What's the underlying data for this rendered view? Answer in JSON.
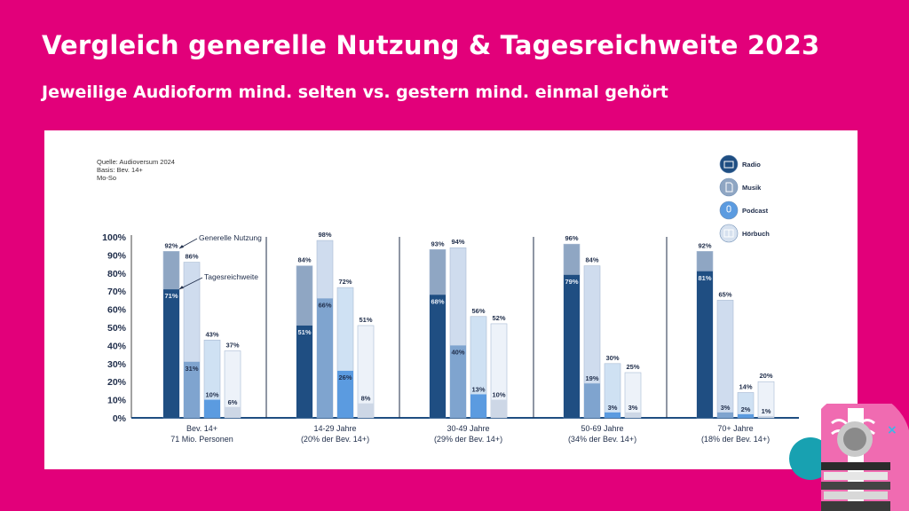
{
  "header": {
    "title": "Vergleich generelle Nutzung & Tagesreichweite 2023",
    "subtitle": "Jeweilige Audioform mind. selten vs. gestern mind. einmal gehört"
  },
  "chart_data": {
    "type": "bar",
    "source_lines": [
      "Quelle: Audioversum 2024",
      "Basis: Bev. 14+",
      "Mo-So"
    ],
    "ylim": [
      0,
      100
    ],
    "yticks": [
      "0%",
      "10%",
      "20%",
      "30%",
      "40%",
      "50%",
      "60%",
      "70%",
      "80%",
      "90%",
      "100%"
    ],
    "categories": [
      {
        "label": "Bev. 14+",
        "sublabel": "71 Mio. Personen"
      },
      {
        "label": "14-29 Jahre",
        "sublabel": "(20% der Bev. 14+)"
      },
      {
        "label": "30-49 Jahre",
        "sublabel": "(29% der Bev. 14+)"
      },
      {
        "label": "50-69 Jahre",
        "sublabel": "(34% der Bev. 14+)"
      },
      {
        "label": "70+ Jahre",
        "sublabel": "(18% der Bev. 14+)"
      }
    ],
    "series": [
      {
        "name": "Radio",
        "icon": "radio-icon",
        "color_total": "#8fa6c3",
        "color_daily": "#1f4e82",
        "generelle_nutzung": [
          92,
          84,
          93,
          96,
          92
        ],
        "tagesreichweite": [
          71,
          51,
          68,
          79,
          81
        ]
      },
      {
        "name": "Musik",
        "icon": "music-file-icon",
        "color_total": "#cfdcee",
        "color_daily": "#7fa4cf",
        "generelle_nutzung": [
          86,
          98,
          94,
          84,
          65
        ],
        "tagesreichweite": [
          31,
          66,
          40,
          19,
          3
        ]
      },
      {
        "name": "Podcast",
        "icon": "microphone-icon",
        "color_total": "#cfe1f3",
        "color_daily": "#5b9be0",
        "generelle_nutzung": [
          43,
          72,
          56,
          30,
          14
        ],
        "tagesreichweite": [
          10,
          26,
          13,
          3,
          2
        ]
      },
      {
        "name": "Hörbuch",
        "icon": "book-icon",
        "color_total": "#edf2f9",
        "color_daily": "#cdd7e6",
        "generelle_nutzung": [
          37,
          51,
          52,
          25,
          20
        ],
        "tagesreichweite": [
          6,
          8,
          10,
          3,
          1
        ]
      }
    ],
    "annotations": {
      "total": "Generelle Nutzung",
      "daily": "Tagesreichweite"
    },
    "legend_position": "top-right",
    "grid": false
  }
}
